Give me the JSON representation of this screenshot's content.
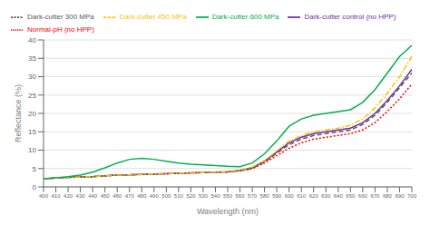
{
  "chart_data": {
    "type": "line",
    "xlabel": "Wavelength (nm)",
    "ylabel": "Reflectance (%)",
    "x": [
      400,
      410,
      420,
      430,
      440,
      450,
      460,
      470,
      480,
      490,
      500,
      510,
      520,
      530,
      540,
      550,
      560,
      570,
      580,
      590,
      600,
      610,
      620,
      630,
      640,
      650,
      660,
      670,
      680,
      690,
      700
    ],
    "xlim": [
      400,
      700
    ],
    "ylim": [
      0,
      40
    ],
    "xticks": [
      400,
      410,
      420,
      430,
      440,
      450,
      460,
      470,
      480,
      490,
      500,
      510,
      520,
      530,
      540,
      550,
      560,
      570,
      580,
      590,
      600,
      610,
      620,
      630,
      640,
      650,
      660,
      670,
      680,
      690,
      700
    ],
    "yticks": [
      0,
      5,
      10,
      15,
      20,
      25,
      30,
      35,
      40
    ],
    "grid": "y",
    "legend": "upper left",
    "series": [
      {
        "name": "Normal-pH (no HPP)",
        "color": "#ff0000",
        "line_style": "dotted",
        "values": [
          2.2,
          2.4,
          2.6,
          2.7,
          2.8,
          3.0,
          3.2,
          3.3,
          3.4,
          3.5,
          3.6,
          3.7,
          3.8,
          3.9,
          4.0,
          4.1,
          4.4,
          5.0,
          6.5,
          8.5,
          10.5,
          12.0,
          13.0,
          13.5,
          14.0,
          14.5,
          15.5,
          17.5,
          20.5,
          24.0,
          28.0
        ]
      },
      {
        "name": "Dark-cutter control (no HPP)",
        "color": "#7030a0",
        "line_style": "solid",
        "values": [
          2.2,
          2.4,
          2.6,
          2.7,
          2.8,
          3.0,
          3.2,
          3.3,
          3.4,
          3.5,
          3.6,
          3.7,
          3.8,
          3.9,
          4.0,
          4.1,
          4.5,
          5.2,
          7.0,
          9.5,
          12.0,
          13.5,
          14.5,
          15.0,
          15.5,
          16.0,
          17.5,
          20.0,
          23.5,
          27.5,
          32.0
        ]
      },
      {
        "name": "Dark-cutter 300 MPa",
        "color": "#595959",
        "line_style": "dashed",
        "values": [
          2.2,
          2.4,
          2.6,
          2.7,
          2.8,
          3.0,
          3.2,
          3.3,
          3.4,
          3.5,
          3.6,
          3.7,
          3.8,
          3.9,
          4.0,
          4.1,
          4.4,
          5.0,
          6.8,
          9.2,
          11.5,
          13.0,
          14.0,
          14.5,
          15.0,
          15.5,
          17.0,
          19.5,
          23.0,
          27.0,
          31.0
        ]
      },
      {
        "name": "Dark-cutter 450 MPa",
        "color": "#ffc000",
        "line_style": "dashdot",
        "values": [
          2.2,
          2.4,
          2.6,
          2.7,
          2.8,
          3.0,
          3.2,
          3.3,
          3.4,
          3.5,
          3.6,
          3.7,
          3.8,
          3.9,
          4.0,
          4.2,
          4.6,
          5.4,
          7.2,
          9.8,
          12.5,
          14.0,
          15.0,
          15.5,
          16.0,
          16.8,
          18.5,
          21.5,
          25.5,
          30.0,
          35.5
        ]
      },
      {
        "name": "Dark-cutter 600 MPa",
        "color": "#00b050",
        "line_style": "solid",
        "values": [
          2.2,
          2.5,
          2.8,
          3.2,
          4.0,
          5.2,
          6.5,
          7.5,
          7.8,
          7.5,
          7.0,
          6.5,
          6.2,
          6.0,
          5.8,
          5.6,
          5.5,
          6.5,
          9.0,
          12.5,
          16.5,
          18.5,
          19.5,
          20.0,
          20.5,
          21.0,
          23.0,
          26.5,
          31.0,
          35.5,
          38.5
        ]
      }
    ]
  }
}
